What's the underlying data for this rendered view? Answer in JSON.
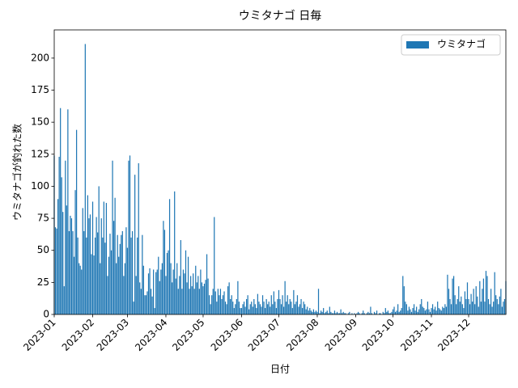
{
  "chart_data": {
    "type": "bar",
    "title": "ウミタナゴ 日毎",
    "x_label": "日付",
    "y_label": "ウミタナゴが釣れた数",
    "legend": "upper right",
    "series": [
      {
        "name": "ウミタナゴ",
        "color": "#1f77b4",
        "values": [
          124,
          68,
          67,
          90,
          123,
          161,
          107,
          80,
          22,
          120,
          85,
          160,
          65,
          77,
          75,
          65,
          45,
          97,
          144,
          60,
          40,
          38,
          35,
          83,
          65,
          211,
          60,
          93,
          75,
          78,
          47,
          88,
          46,
          60,
          76,
          64,
          100,
          40,
          75,
          60,
          88,
          56,
          87,
          30,
          45,
          63,
          50,
          120,
          73,
          91,
          40,
          62,
          45,
          55,
          62,
          65,
          30,
          40,
          68,
          52,
          120,
          124,
          60,
          65,
          10,
          109,
          30,
          60,
          118,
          25,
          20,
          62,
          38,
          15,
          15,
          18,
          32,
          36,
          20,
          14,
          35,
          5,
          33,
          35,
          45,
          26,
          35,
          40,
          73,
          66,
          30,
          48,
          50,
          90,
          40,
          25,
          35,
          96,
          28,
          40,
          20,
          30,
          58,
          20,
          35,
          32,
          50,
          25,
          45,
          20,
          30,
          22,
          32,
          20,
          38,
          25,
          30,
          20,
          35,
          25,
          22,
          24,
          27,
          47,
          28,
          15,
          8,
          15,
          20,
          76,
          18,
          10,
          20,
          15,
          20,
          12,
          15,
          18,
          10,
          8,
          22,
          25,
          12,
          15,
          10,
          5,
          8,
          12,
          26,
          10,
          5,
          5,
          8,
          10,
          6,
          12,
          15,
          4,
          8,
          10,
          6,
          12,
          8,
          5,
          16,
          10,
          8,
          6,
          15,
          10,
          5,
          12,
          8,
          10,
          6,
          15,
          8,
          18,
          10,
          5,
          12,
          19,
          12,
          8,
          15,
          6,
          26,
          10,
          15,
          8,
          12,
          10,
          5,
          19,
          8,
          10,
          15,
          6,
          8,
          12,
          5,
          10,
          8,
          4,
          6,
          3,
          5,
          3,
          2,
          4,
          2,
          3,
          2,
          20,
          1,
          3,
          2,
          5,
          1,
          2,
          3,
          1,
          6,
          2,
          1,
          1,
          3,
          1,
          2,
          1,
          1,
          4,
          1,
          2,
          1,
          1,
          0,
          1,
          2,
          0,
          1,
          0,
          1,
          0,
          1,
          2,
          1,
          0,
          1,
          3,
          1,
          0,
          1,
          2,
          1,
          6,
          1,
          0,
          2,
          1,
          3,
          0,
          1,
          1,
          0,
          2,
          1,
          5,
          2,
          3,
          1,
          1,
          2,
          4,
          6,
          2,
          3,
          8,
          2,
          3,
          5,
          30,
          22,
          10,
          8,
          3,
          6,
          4,
          2,
          5,
          8,
          3,
          6,
          2,
          4,
          8,
          12,
          6,
          5,
          3,
          4,
          10,
          4,
          2,
          5,
          8,
          4,
          6,
          3,
          10,
          5,
          4,
          3,
          6,
          5,
          8,
          6,
          31,
          20,
          12,
          8,
          28,
          30,
          15,
          8,
          12,
          22,
          10,
          14,
          8,
          5,
          18,
          12,
          25,
          12,
          8,
          16,
          10,
          20,
          8,
          22,
          14,
          6,
          26,
          10,
          20,
          28,
          10,
          34,
          30,
          12,
          8,
          20,
          6,
          10,
          33,
          15,
          12,
          8,
          14,
          20,
          6,
          10,
          12,
          26
        ]
      }
    ],
    "xlim": [
      0,
      364
    ],
    "xticks": [
      {
        "value": 0,
        "label": "2023-01"
      },
      {
        "value": 31,
        "label": "2023-02"
      },
      {
        "value": 59,
        "label": "2023-03"
      },
      {
        "value": 90,
        "label": "2023-04"
      },
      {
        "value": 120,
        "label": "2023-05"
      },
      {
        "value": 151,
        "label": "2023-06"
      },
      {
        "value": 181,
        "label": "2023-07"
      },
      {
        "value": 212,
        "label": "2023-08"
      },
      {
        "value": 243,
        "label": "2023-09"
      },
      {
        "value": 273,
        "label": "2023-10"
      },
      {
        "value": 304,
        "label": "2023-11"
      },
      {
        "value": 334,
        "label": "2023-12"
      }
    ],
    "ylim": [
      0,
      222
    ],
    "yticks": [
      0,
      25,
      50,
      75,
      100,
      125,
      150,
      175,
      200
    ]
  }
}
